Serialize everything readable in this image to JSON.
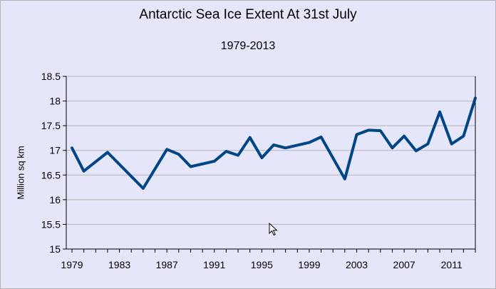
{
  "chart_data": {
    "type": "line",
    "title": "Antarctic Sea Ice Extent At 31st July",
    "subtitle": "1979-2013",
    "xlabel": "",
    "ylabel": "Million sq km",
    "x": [
      1979,
      1980,
      1981,
      1982,
      1983,
      1984,
      1985,
      1986,
      1987,
      1988,
      1989,
      1990,
      1991,
      1992,
      1993,
      1994,
      1995,
      1996,
      1997,
      1998,
      1999,
      2000,
      2001,
      2002,
      2003,
      2004,
      2005,
      2006,
      2007,
      2008,
      2009,
      2010,
      2011,
      2012,
      2013
    ],
    "x_tick_labels": [
      "1979",
      "1983",
      "1987",
      "1991",
      "1995",
      "1999",
      "2003",
      "2007",
      "2011"
    ],
    "ylim": [
      15,
      18.5
    ],
    "y_tick_labels": [
      "15",
      "15.5",
      "16",
      "16.5",
      "17",
      "17.5",
      "18",
      "18.5"
    ],
    "series": [
      {
        "values": [
          17.05,
          16.58,
          null,
          16.96,
          null,
          null,
          16.23,
          null,
          17.02,
          16.92,
          16.67,
          null,
          16.78,
          16.98,
          16.9,
          17.26,
          16.85,
          17.11,
          17.05,
          null,
          17.16,
          17.27,
          null,
          16.42,
          17.32,
          17.41,
          17.4,
          17.05,
          17.29,
          16.99,
          17.13,
          17.78,
          17.13,
          17.29,
          18.06
        ],
        "color": "#004586"
      }
    ],
    "grid": "horizontal",
    "legend": "none"
  },
  "colors": {
    "background": "#e6e6fa",
    "gridline": "#b3b3b3",
    "axis": "#000000",
    "series_line": "#004586"
  },
  "icons": {
    "cursor": "mouse-pointer-icon"
  }
}
